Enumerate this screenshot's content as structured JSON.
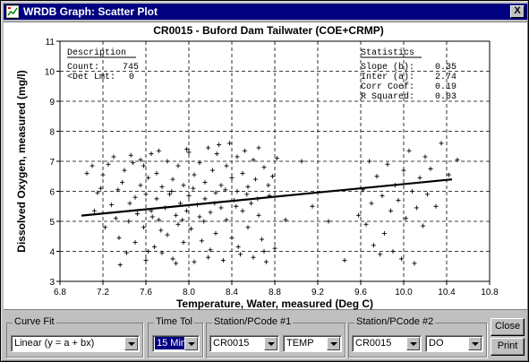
{
  "window": {
    "title": "WRDB Graph: Scatter Plot",
    "close_glyph": "X",
    "app_icon": "chart-window-icon"
  },
  "chart_data": {
    "type": "scatter",
    "title": "CR0015 - Buford Dam Tailwater (COE+CRMP)",
    "xlabel": "Temperature, Water, measured (Deg C)",
    "ylabel": "Dissolved Oxygen, measured (mg/l)",
    "xlim": [
      6.8,
      10.8
    ],
    "ylim": [
      3,
      11
    ],
    "xticks": [
      "6.8",
      "7.2",
      "7.6",
      "8.0",
      "8.4",
      "8.8",
      "9.2",
      "9.6",
      "10.0",
      "10.4",
      "10.8"
    ],
    "yticks": [
      "3",
      "4",
      "5",
      "6",
      "7",
      "8",
      "9",
      "10",
      "11"
    ],
    "grid": true,
    "marker": "+",
    "description": {
      "header": "Description",
      "count_label": "Count:",
      "count_value": "745",
      "det_label": "<Det Lmt:",
      "det_value": "0"
    },
    "statistics": {
      "header": "Statistics",
      "rows": [
        {
          "label": "Slope (b):",
          "value": "0.35"
        },
        {
          "label": "Inter (a):",
          "value": "2.74"
        },
        {
          "label": "Corr Coef:",
          "value": "0.19"
        },
        {
          "label": "R Squared:",
          "value": "0.03"
        }
      ]
    },
    "fit": {
      "slope": 0.35,
      "intercept": 2.74,
      "x_range": [
        7.0,
        10.45
      ]
    },
    "points": [
      [
        7.05,
        6.6
      ],
      [
        7.1,
        6.85
      ],
      [
        7.15,
        5.95
      ],
      [
        7.2,
        6.55
      ],
      [
        7.25,
        6.9
      ],
      [
        7.3,
        7.15
      ],
      [
        7.32,
        5.1
      ],
      [
        7.35,
        4.45
      ],
      [
        7.38,
        6.3
      ],
      [
        7.4,
        6.7
      ],
      [
        7.42,
        3.95
      ],
      [
        7.45,
        5.6
      ],
      [
        7.48,
        6.95
      ],
      [
        7.5,
        4.3
      ],
      [
        7.52,
        5.25
      ],
      [
        7.55,
        6.2
      ],
      [
        7.55,
        7.05
      ],
      [
        7.58,
        4.8
      ],
      [
        7.6,
        5.9
      ],
      [
        7.6,
        3.7
      ],
      [
        7.62,
        6.45
      ],
      [
        7.65,
        5.35
      ],
      [
        7.65,
        7.25
      ],
      [
        7.68,
        4.15
      ],
      [
        7.7,
        5.75
      ],
      [
        7.7,
        6.6
      ],
      [
        7.72,
        5.05
      ],
      [
        7.75,
        3.95
      ],
      [
        7.75,
        6.15
      ],
      [
        7.78,
        5.45
      ],
      [
        7.8,
        7.0
      ],
      [
        7.8,
        4.55
      ],
      [
        7.82,
        5.9
      ],
      [
        7.85,
        6.4
      ],
      [
        7.85,
        3.75
      ],
      [
        7.88,
        5.2
      ],
      [
        7.9,
        6.85
      ],
      [
        7.9,
        4.9
      ],
      [
        7.92,
        5.6
      ],
      [
        7.95,
        6.2
      ],
      [
        7.95,
        4.3
      ],
      [
        7.98,
        5.35
      ],
      [
        8.0,
        7.3
      ],
      [
        8.0,
        5.85
      ],
      [
        8.02,
        4.75
      ],
      [
        8.05,
        6.55
      ],
      [
        8.05,
        3.65
      ],
      [
        8.08,
        5.55
      ],
      [
        8.1,
        6.95
      ],
      [
        8.1,
        5.15
      ],
      [
        8.12,
        4.35
      ],
      [
        8.15,
        6.3
      ],
      [
        8.15,
        5.75
      ],
      [
        8.18,
        7.45
      ],
      [
        8.2,
        5.3
      ],
      [
        8.2,
        4.05
      ],
      [
        8.22,
        6.7
      ],
      [
        8.25,
        5.95
      ],
      [
        8.25,
        4.6
      ],
      [
        8.28,
        7.55
      ],
      [
        8.3,
        6.2
      ],
      [
        8.3,
        5.45
      ],
      [
        8.32,
        3.7
      ],
      [
        8.35,
        6.85
      ],
      [
        8.35,
        5.05
      ],
      [
        8.38,
        7.6
      ],
      [
        8.4,
        6.45
      ],
      [
        8.4,
        4.45
      ],
      [
        8.42,
        5.7
      ],
      [
        8.45,
        7.15
      ],
      [
        8.45,
        6.0
      ],
      [
        8.48,
        3.9
      ],
      [
        8.5,
        6.6
      ],
      [
        8.5,
        5.35
      ],
      [
        8.52,
        7.35
      ],
      [
        8.55,
        4.8
      ],
      [
        8.55,
        6.15
      ],
      [
        8.58,
        5.6
      ],
      [
        8.6,
        7.05
      ],
      [
        8.6,
        3.8
      ],
      [
        8.62,
        6.4
      ],
      [
        8.65,
        5.2
      ],
      [
        8.65,
        7.45
      ],
      [
        8.68,
        4.4
      ],
      [
        8.7,
        6.8
      ],
      [
        8.72,
        3.65
      ],
      [
        8.75,
        5.85
      ],
      [
        8.78,
        6.5
      ],
      [
        8.8,
        4.1
      ],
      [
        8.82,
        7.1
      ],
      [
        8.9,
        5.05
      ],
      [
        9.05,
        7.0
      ],
      [
        9.15,
        5.5
      ],
      [
        9.3,
        5.0
      ],
      [
        9.45,
        3.7
      ],
      [
        9.58,
        5.2
      ],
      [
        9.62,
        6.05
      ],
      [
        9.65,
        4.9
      ],
      [
        9.68,
        7.0
      ],
      [
        9.7,
        5.6
      ],
      [
        9.72,
        4.2
      ],
      [
        9.75,
        6.5
      ],
      [
        9.78,
        3.9
      ],
      [
        9.8,
        5.85
      ],
      [
        9.82,
        4.6
      ],
      [
        9.85,
        6.9
      ],
      [
        9.88,
        5.35
      ],
      [
        9.9,
        4.0
      ],
      [
        9.92,
        6.2
      ],
      [
        9.95,
        5.7
      ],
      [
        9.98,
        3.75
      ],
      [
        10.0,
        6.7
      ],
      [
        10.02,
        5.1
      ],
      [
        10.05,
        7.35
      ],
      [
        10.08,
        6.0
      ],
      [
        10.1,
        3.6
      ],
      [
        10.12,
        5.45
      ],
      [
        10.15,
        6.45
      ],
      [
        10.18,
        4.85
      ],
      [
        10.2,
        7.15
      ],
      [
        10.22,
        5.9
      ],
      [
        10.25,
        6.75
      ],
      [
        10.3,
        5.5
      ],
      [
        10.35,
        7.6
      ],
      [
        10.42,
        6.55
      ],
      [
        10.5,
        7.05
      ],
      [
        7.12,
        5.35
      ],
      [
        7.18,
        6.1
      ],
      [
        7.22,
        4.8
      ],
      [
        7.28,
        5.55
      ],
      [
        7.34,
        6.05
      ],
      [
        7.44,
        5.0
      ],
      [
        7.5,
        5.8
      ],
      [
        7.58,
        6.85
      ],
      [
        7.66,
        5.15
      ],
      [
        7.74,
        4.7
      ],
      [
        7.84,
        6.0
      ],
      [
        7.94,
        5.05
      ],
      [
        8.04,
        6.1
      ],
      [
        8.14,
        5.0
      ],
      [
        8.24,
        5.6
      ],
      [
        8.34,
        6.05
      ],
      [
        8.44,
        5.5
      ],
      [
        8.54,
        5.9
      ],
      [
        8.64,
        5.75
      ],
      [
        8.74,
        6.2
      ],
      [
        7.36,
        3.55
      ],
      [
        7.62,
        4.0
      ],
      [
        7.88,
        3.6
      ],
      [
        8.18,
        3.8
      ],
      [
        8.46,
        4.15
      ],
      [
        8.7,
        4.0
      ],
      [
        7.46,
        7.2
      ],
      [
        7.72,
        7.35
      ],
      [
        7.98,
        7.4
      ],
      [
        8.26,
        7.25
      ]
    ]
  },
  "controls": {
    "curve_fit": {
      "label": "Curve Fit",
      "value": "Linear (y = a + bx)"
    },
    "time_tol": {
      "label": "Time Tol",
      "value": "15 Min"
    },
    "station1": {
      "label": "Station/PCode #1",
      "station": "CR0015",
      "pcode": "TEMP"
    },
    "station2": {
      "label": "Station/PCode #2",
      "station": "CR0015",
      "pcode": "DO"
    },
    "close_label": "Close",
    "print_label": "Print"
  }
}
